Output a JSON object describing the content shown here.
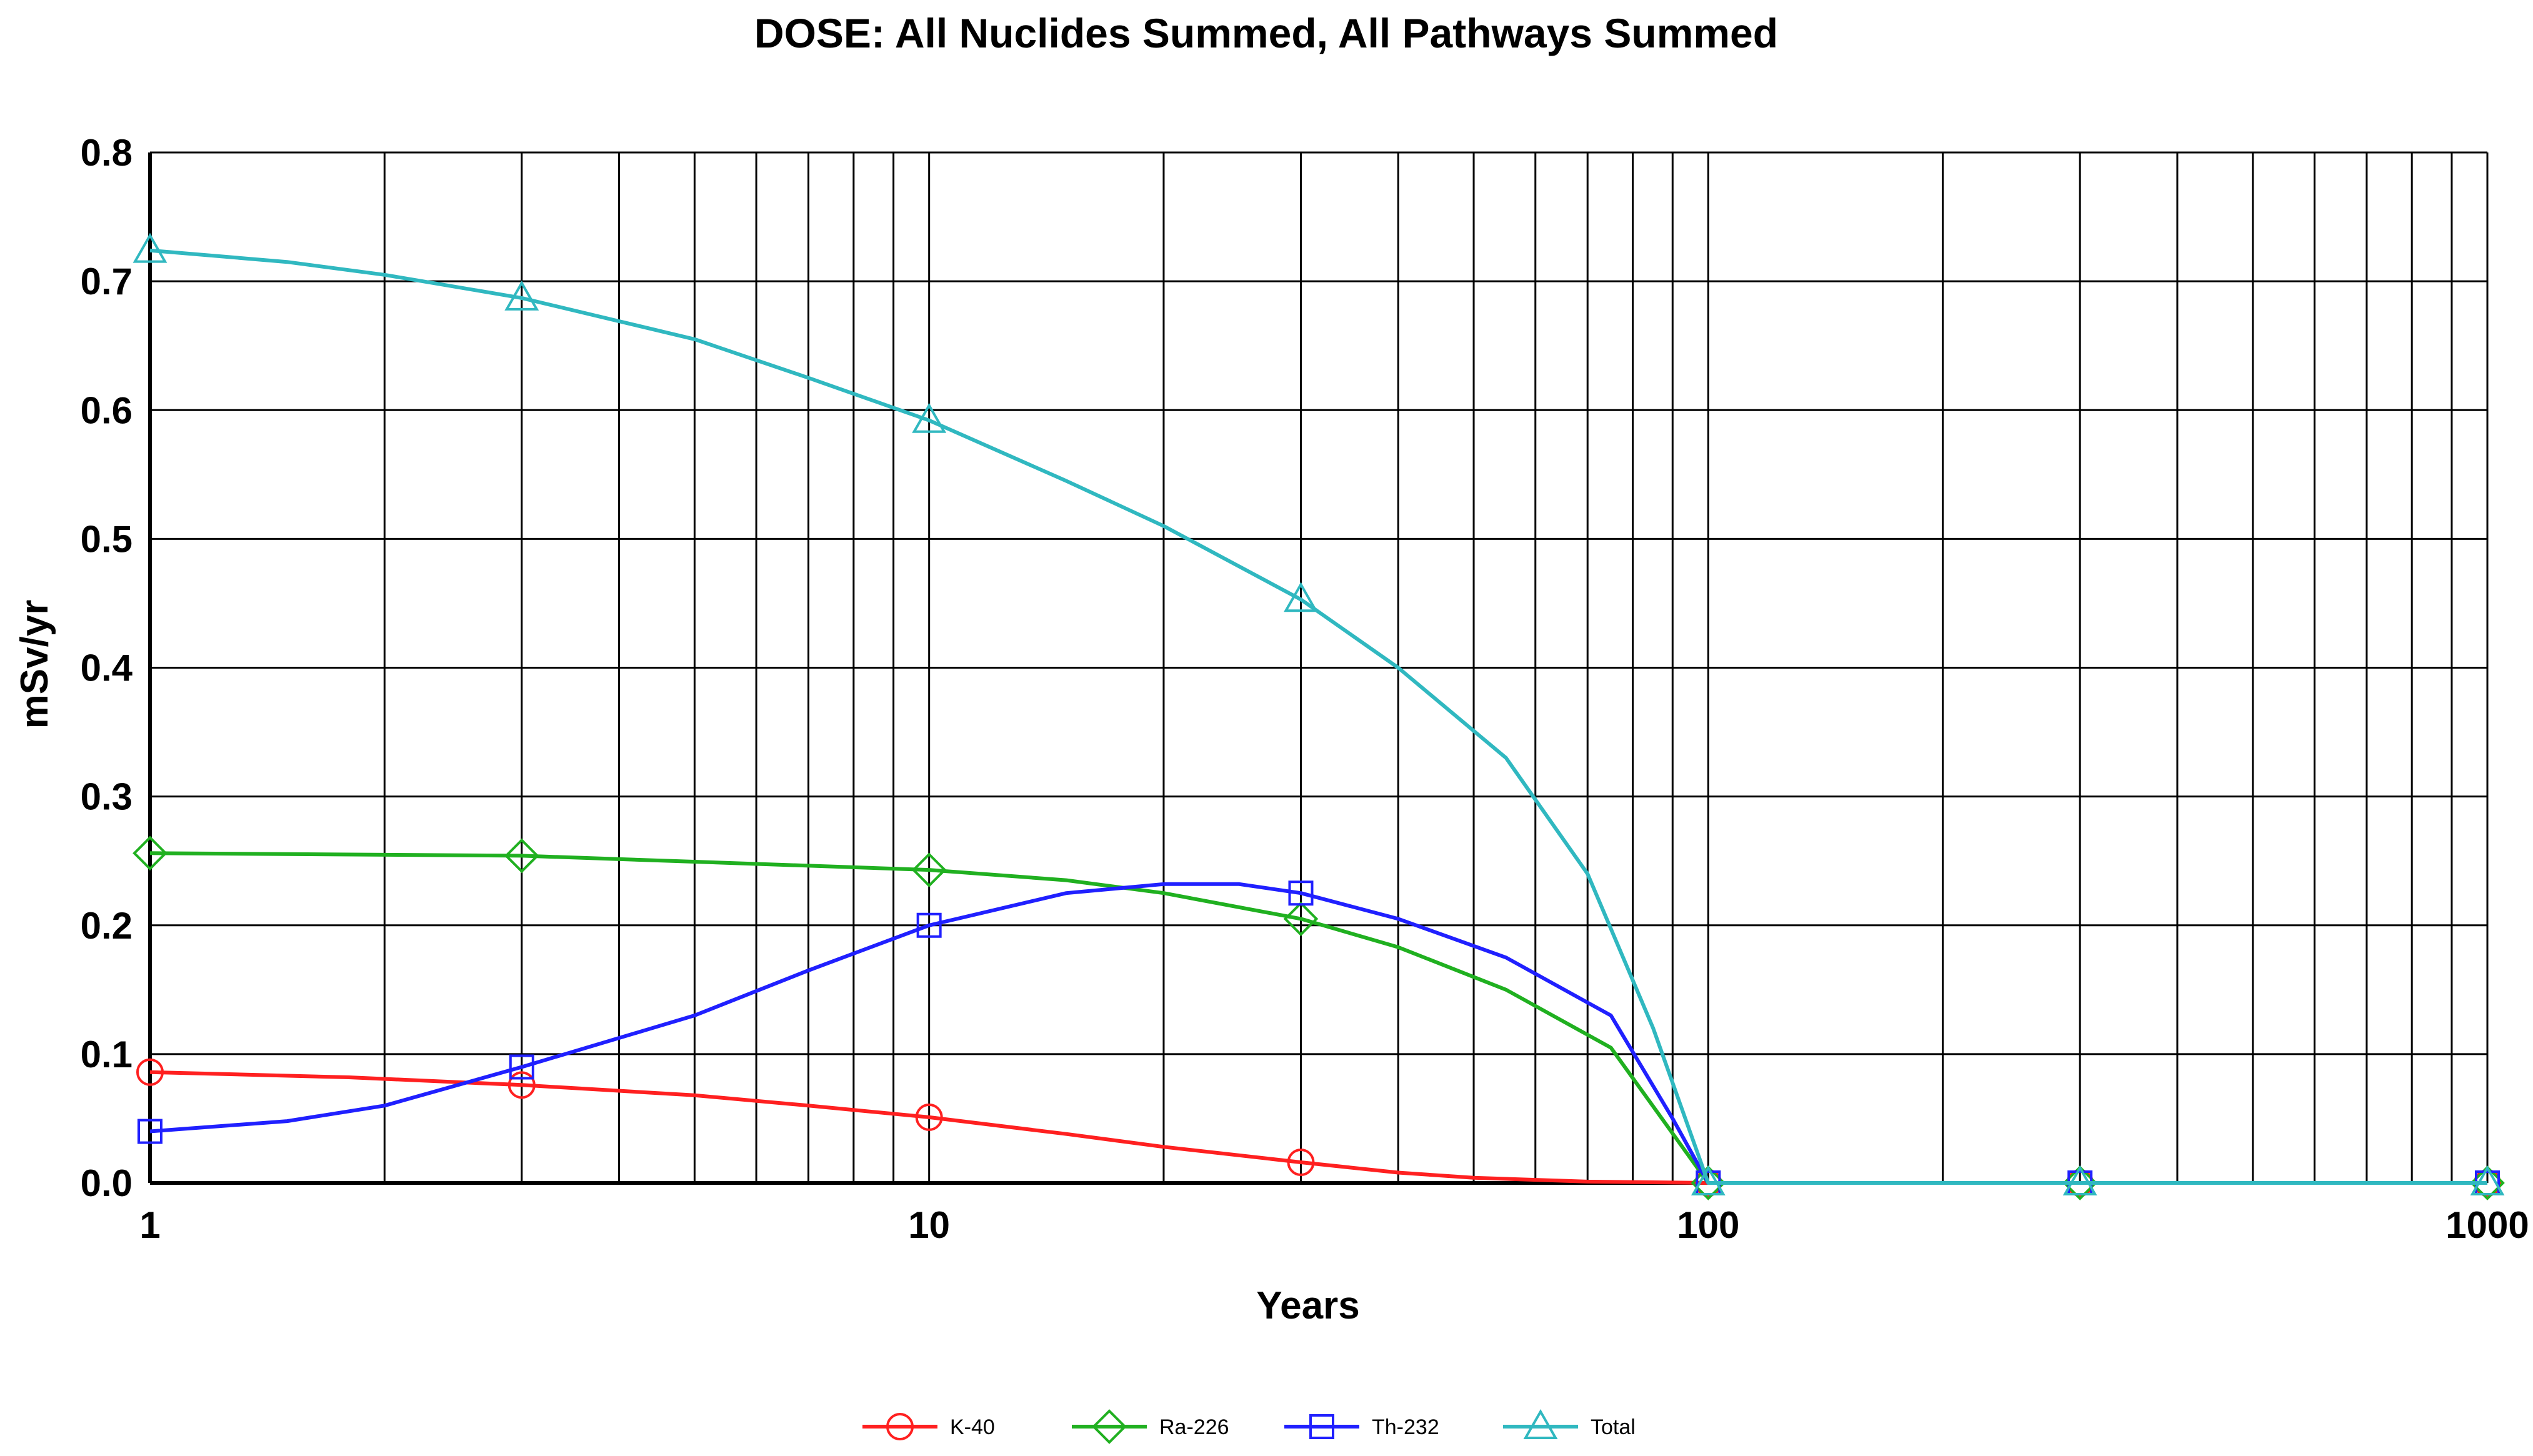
{
  "chart_data": {
    "type": "line",
    "title": "DOSE: All Nuclides Summed, All Pathways Summed",
    "xlabel": "Years",
    "ylabel": "mSv/yr",
    "xscale": "log",
    "xlim": [
      1,
      1000
    ],
    "ylim": [
      0,
      0.8
    ],
    "x_ticks": [
      "1",
      "10",
      "100",
      "1000"
    ],
    "y_ticks": [
      "0.0",
      "0.1",
      "0.2",
      "0.3",
      "0.4",
      "0.5",
      "0.6",
      "0.7",
      "0.8"
    ],
    "grid": true,
    "legend_position": "bottom",
    "series": [
      {
        "name": "K-40",
        "color": "#ff2020",
        "marker": "circle",
        "x": [
          1,
          1.8,
          3,
          5,
          7,
          10,
          15,
          20,
          30,
          40,
          50,
          70,
          100,
          300,
          1000
        ],
        "y": [
          0.086,
          0.082,
          0.076,
          0.068,
          0.06,
          0.051,
          0.038,
          0.028,
          0.016,
          0.008,
          0.004,
          0.001,
          0.0,
          0.0,
          0.0
        ],
        "markers_at": [
          1,
          3,
          10,
          30,
          100,
          300,
          1000
        ]
      },
      {
        "name": "Ra-226",
        "color": "#20b020",
        "marker": "diamond",
        "x": [
          1,
          3,
          10,
          15,
          20,
          30,
          40,
          55,
          75,
          100,
          300,
          1000
        ],
        "y": [
          0.256,
          0.254,
          0.243,
          0.235,
          0.225,
          0.205,
          0.183,
          0.15,
          0.105,
          0.0,
          0.0,
          0.0
        ],
        "markers_at": [
          1,
          3,
          10,
          30,
          100,
          300,
          1000
        ]
      },
      {
        "name": "Th-232",
        "color": "#2020ff",
        "marker": "square",
        "x": [
          1,
          1.5,
          2,
          3,
          5,
          7,
          10,
          15,
          20,
          25,
          30,
          40,
          55,
          75,
          90,
          100,
          300,
          1000
        ],
        "y": [
          0.04,
          0.048,
          0.06,
          0.09,
          0.13,
          0.165,
          0.2,
          0.225,
          0.232,
          0.232,
          0.225,
          0.205,
          0.175,
          0.13,
          0.05,
          0.0,
          0.0,
          0.0
        ],
        "markers_at": [
          1,
          3,
          10,
          30,
          100,
          300,
          1000
        ]
      },
      {
        "name": "Total",
        "color": "#30b8c0",
        "marker": "triangle",
        "x": [
          1,
          1.5,
          2,
          3,
          5,
          7,
          10,
          15,
          20,
          30,
          40,
          55,
          70,
          85,
          100,
          300,
          1000
        ],
        "y": [
          0.724,
          0.715,
          0.705,
          0.687,
          0.655,
          0.625,
          0.592,
          0.545,
          0.51,
          0.453,
          0.4,
          0.33,
          0.24,
          0.12,
          0.0,
          0.0,
          0.0
        ],
        "markers_at": [
          1,
          3,
          10,
          30,
          100,
          300,
          1000
        ]
      }
    ]
  }
}
